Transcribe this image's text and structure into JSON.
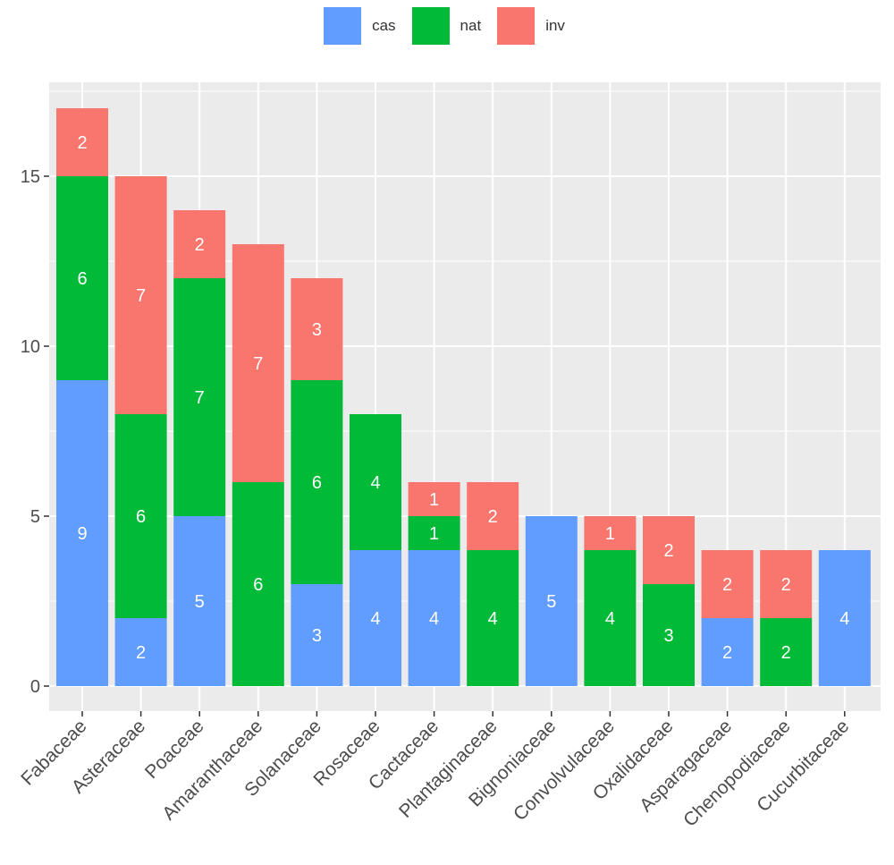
{
  "chart_data": {
    "type": "bar",
    "stacked": true,
    "categories": [
      "Fabaceae",
      "Asteraceae",
      "Poaceae",
      "Amaranthaceae",
      "Solanaceae",
      "Rosaceae",
      "Cactaceae",
      "Plantaginaceae",
      "Bignoniaceae",
      "Convolvulaceae",
      "Oxalidaceae",
      "Asparagaceae",
      "Chenopodiaceae",
      "Cucurbitaceae"
    ],
    "series": [
      {
        "name": "cas",
        "color": "#619CFF",
        "values": [
          9,
          2,
          5,
          0,
          3,
          4,
          4,
          0,
          5,
          0,
          0,
          2,
          0,
          4
        ]
      },
      {
        "name": "nat",
        "color": "#00BA38",
        "values": [
          6,
          6,
          7,
          6,
          6,
          4,
          1,
          4,
          0,
          4,
          3,
          0,
          2,
          0
        ]
      },
      {
        "name": "inv",
        "color": "#F8766D",
        "values": [
          2,
          7,
          2,
          7,
          3,
          0,
          1,
          2,
          0,
          1,
          2,
          2,
          2,
          0
        ]
      }
    ],
    "stack_order_bottom_to_top": [
      "cas",
      "nat",
      "inv"
    ],
    "ylim": [
      0,
      17.9
    ],
    "yticks": [
      0,
      5,
      10,
      15
    ],
    "ytick_labels": [
      "0",
      "5",
      "10",
      "15"
    ],
    "xlabel": "",
    "ylabel": "",
    "title": "",
    "grid": true,
    "legend_position": "top",
    "panel_background": "#EBEBEB",
    "grid_color": "#FFFFFF"
  }
}
